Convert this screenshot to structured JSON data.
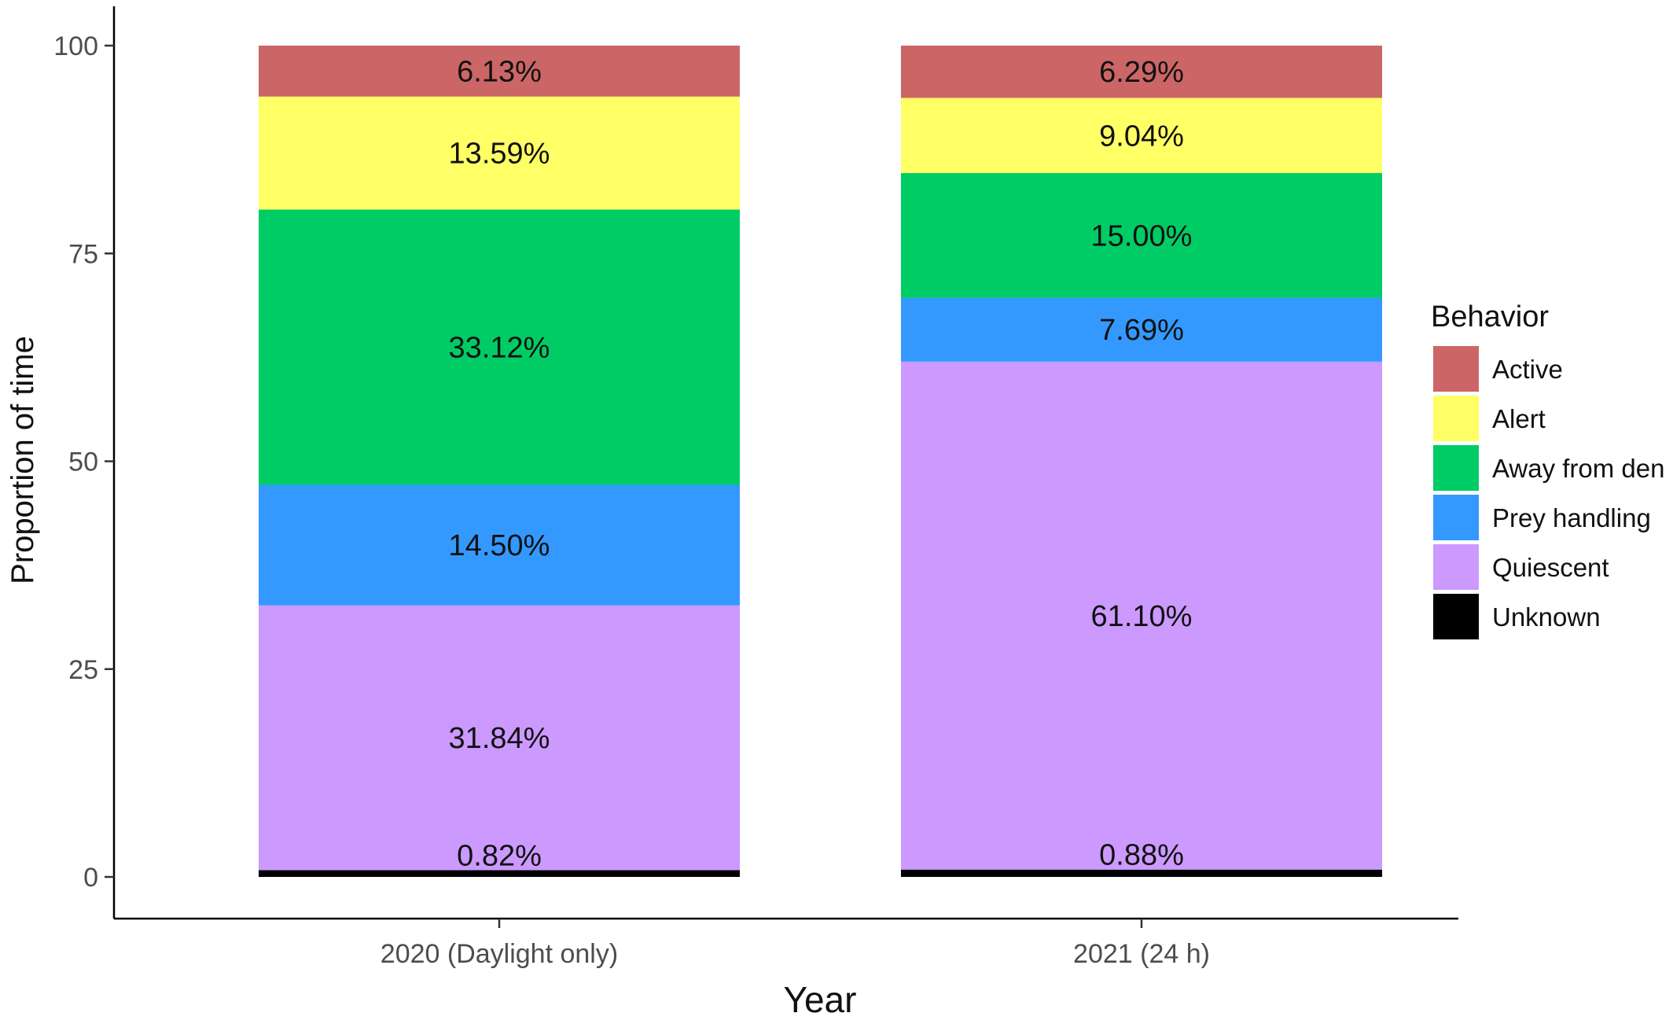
{
  "chart_data": {
    "type": "bar",
    "stacked": true,
    "categories": [
      "2020 (Daylight only)",
      "2021 (24 h)"
    ],
    "xlabel": "Year",
    "ylabel": "Proportion of  time",
    "ylim": [
      0,
      100
    ],
    "yticks": [
      "0",
      "25",
      "50",
      "75",
      "100"
    ],
    "grid": false,
    "legend": {
      "title": "Behavior",
      "position": "right"
    },
    "series": [
      {
        "name": "Unknown",
        "color": "#000000",
        "values": [
          0.82,
          0.88
        ],
        "labels": [
          "0.82%",
          "0.88%"
        ]
      },
      {
        "name": "Quiescent",
        "color": "#cc99ff",
        "values": [
          31.84,
          61.1
        ],
        "labels": [
          "31.84%",
          "61.10%"
        ]
      },
      {
        "name": "Prey handling",
        "color": "#3399ff",
        "values": [
          14.5,
          7.69
        ],
        "labels": [
          "14.50%",
          "7.69%"
        ]
      },
      {
        "name": "Away from den",
        "color": "#00cc66",
        "values": [
          33.12,
          15.0
        ],
        "labels": [
          "33.12%",
          "15.00%"
        ]
      },
      {
        "name": "Alert",
        "color": "#ffff66",
        "values": [
          13.59,
          9.04
        ],
        "labels": [
          "13.59%",
          "9.04%"
        ]
      },
      {
        "name": "Active",
        "color": "#cc6666",
        "values": [
          6.13,
          6.29
        ],
        "labels": [
          "6.13%",
          "6.29%"
        ]
      }
    ],
    "legend_order": [
      "Active",
      "Alert",
      "Away from den",
      "Prey handling",
      "Quiescent",
      "Unknown"
    ]
  }
}
